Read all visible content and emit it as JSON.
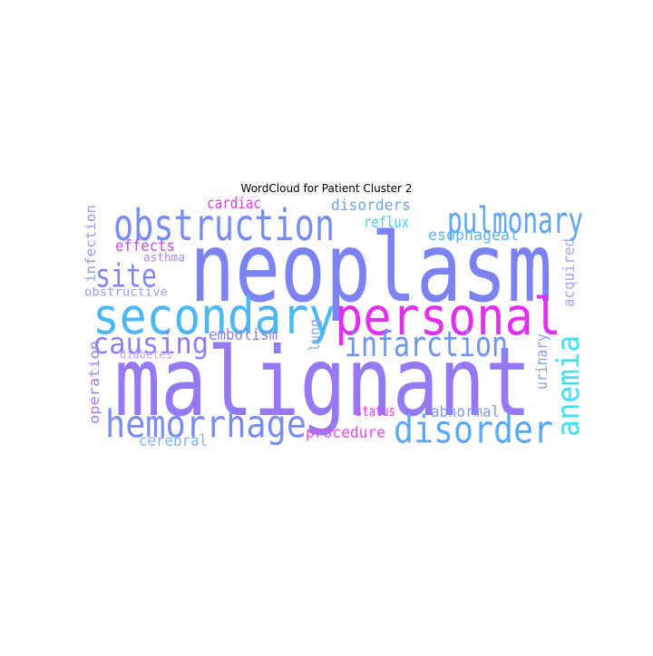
{
  "chart_data": {
    "type": "wordcloud",
    "title": "WordCloud for Patient Cluster 2",
    "words": [
      {
        "text": "neoplasm",
        "weight": 1.0,
        "color": "#7b83f2",
        "orientation": "horizontal"
      },
      {
        "text": "malignant",
        "weight": 0.98,
        "color": "#9478f4",
        "orientation": "horizontal"
      },
      {
        "text": "obstruction",
        "weight": 0.5,
        "color": "#7a8cf2",
        "orientation": "horizontal"
      },
      {
        "text": "personal",
        "weight": 0.56,
        "color": "#e22ef0",
        "orientation": "horizontal"
      },
      {
        "text": "secondary",
        "weight": 0.54,
        "color": "#4bb8f5",
        "orientation": "horizontal"
      },
      {
        "text": "pulmonary",
        "weight": 0.42,
        "color": "#62a4f4",
        "orientation": "horizontal"
      },
      {
        "text": "hemorrhage",
        "weight": 0.38,
        "color": "#7a8cf2",
        "orientation": "horizontal"
      },
      {
        "text": "disorder",
        "weight": 0.4,
        "color": "#5aa9f6",
        "orientation": "horizontal"
      },
      {
        "text": "infarction",
        "weight": 0.33,
        "color": "#6f95f3",
        "orientation": "horizontal"
      },
      {
        "text": "site",
        "weight": 0.36,
        "color": "#7f88f2",
        "orientation": "horizontal"
      },
      {
        "text": "causing",
        "weight": 0.3,
        "color": "#8c7ef3",
        "orientation": "horizontal"
      },
      {
        "text": "anemia",
        "weight": 0.33,
        "color": "#3ee0f5",
        "orientation": "vertical"
      },
      {
        "text": "esophageal",
        "weight": 0.18,
        "color": "#5ab3f4",
        "orientation": "horizontal"
      },
      {
        "text": "reflux",
        "weight": 0.17,
        "color": "#4dc6f5",
        "orientation": "horizontal"
      },
      {
        "text": "disorders",
        "weight": 0.16,
        "color": "#6fa2f3",
        "orientation": "horizontal"
      },
      {
        "text": "cardiac",
        "weight": 0.15,
        "color": "#d640ef",
        "orientation": "horizontal"
      },
      {
        "text": "effects",
        "weight": 0.15,
        "color": "#c04cee",
        "orientation": "horizontal"
      },
      {
        "text": "embolism",
        "weight": 0.15,
        "color": "#8c7ef3",
        "orientation": "horizontal"
      },
      {
        "text": "procedure",
        "weight": 0.15,
        "color": "#e04cf0",
        "orientation": "horizontal"
      },
      {
        "text": "abnormal",
        "weight": 0.14,
        "color": "#7a9af3",
        "orientation": "horizontal"
      },
      {
        "text": "status",
        "weight": 0.12,
        "color": "#df3bef",
        "orientation": "horizontal"
      },
      {
        "text": "cerebral",
        "weight": 0.14,
        "color": "#7fb4f4",
        "orientation": "horizontal"
      },
      {
        "text": "acquired",
        "weight": 0.14,
        "color": "#a6a9f4",
        "orientation": "vertical"
      },
      {
        "text": "urinary",
        "weight": 0.14,
        "color": "#8b9df3",
        "orientation": "vertical"
      },
      {
        "text": "lung",
        "weight": 0.14,
        "color": "#8aa3f4",
        "orientation": "vertical"
      },
      {
        "text": "operation",
        "weight": 0.13,
        "color": "#a07cf3",
        "orientation": "vertical"
      },
      {
        "text": "infection",
        "weight": 0.11,
        "color": "#8e9ef3",
        "orientation": "vertical"
      },
      {
        "text": "asthma",
        "weight": 0.11,
        "color": "#a88cf4",
        "orientation": "horizontal"
      },
      {
        "text": "obstructive",
        "weight": 0.11,
        "color": "#8e9ef3",
        "orientation": "horizontal"
      },
      {
        "text": "diabetes",
        "weight": 0.1,
        "color": "#c0a0f5",
        "orientation": "horizontal"
      }
    ]
  }
}
